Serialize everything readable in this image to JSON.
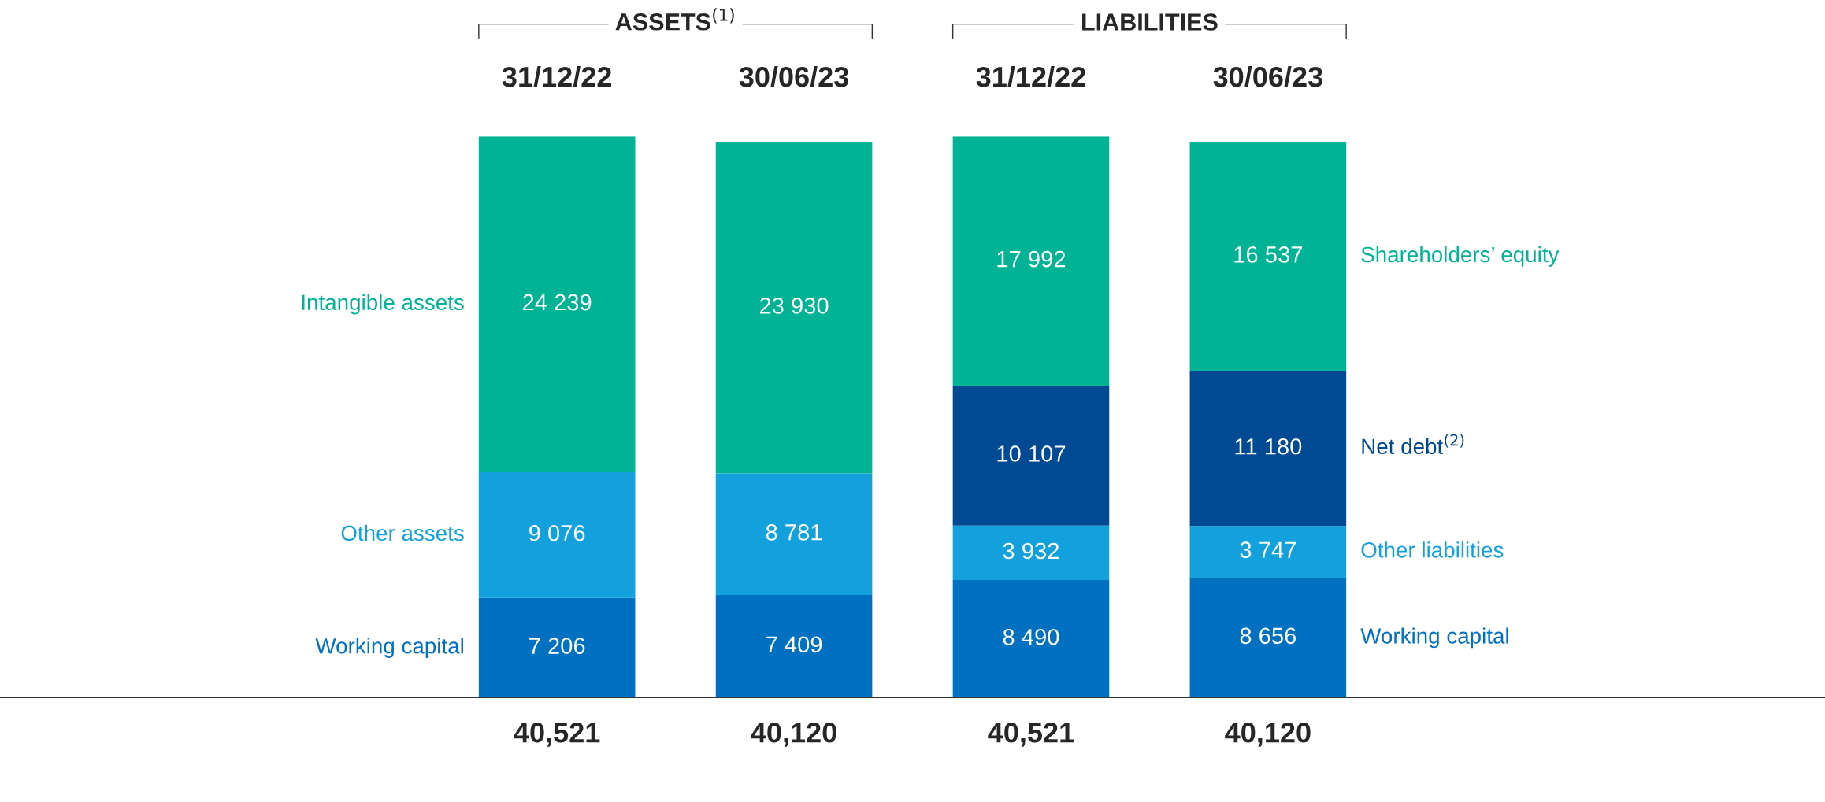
{
  "chart_data": {
    "type": "bar",
    "stacked": true,
    "categories": [
      "31/12/22",
      "30/06/23",
      "31/12/22",
      "30/06/23"
    ],
    "annotations": [
      "ASSETS$^{(1)}$",
      "LIABILITIES"
    ],
    "totals": [
      "40,521",
      "40,120",
      "40,521",
      "40,120"
    ],
    "series": [
      {
        "name": "Working capital",
        "color": "#0070c0",
        "values": [
          7206,
          7409,
          null,
          null
        ],
        "value_labels": [
          "7 206",
          "7 409",
          null,
          null
        ]
      },
      {
        "name": "Other assets",
        "color": "#13a1dd",
        "values": [
          9076,
          8781,
          null,
          null
        ],
        "value_labels": [
          "9 076",
          "8 781",
          null,
          null
        ]
      },
      {
        "name": "Intangible assets",
        "color": "#00b395",
        "values": [
          24239,
          23930,
          null,
          null
        ],
        "value_labels": [
          "24 239",
          "23 930",
          null,
          null
        ]
      },
      {
        "name": "Working capital",
        "color": "#0070c0",
        "values": [
          null,
          null,
          8490,
          8656
        ],
        "value_labels": [
          null,
          null,
          "8 490",
          "8 656"
        ]
      },
      {
        "name": "Other liabilities",
        "color": "#13a1dd",
        "values": [
          null,
          null,
          3932,
          3747
        ],
        "value_labels": [
          null,
          null,
          "3 932",
          "3 747"
        ]
      },
      {
        "name": "Net debt$^{(2)}$",
        "color": "#004a93",
        "values": [
          null,
          null,
          10107,
          11180
        ],
        "value_labels": [
          null,
          null,
          "10 107",
          "11 180"
        ]
      },
      {
        "name": "Shareholders’ equity",
        "color": "#00b395",
        "values": [
          null,
          null,
          17992,
          16537
        ],
        "value_labels": [
          null,
          null,
          "17 992",
          "16 537"
        ]
      }
    ]
  }
}
